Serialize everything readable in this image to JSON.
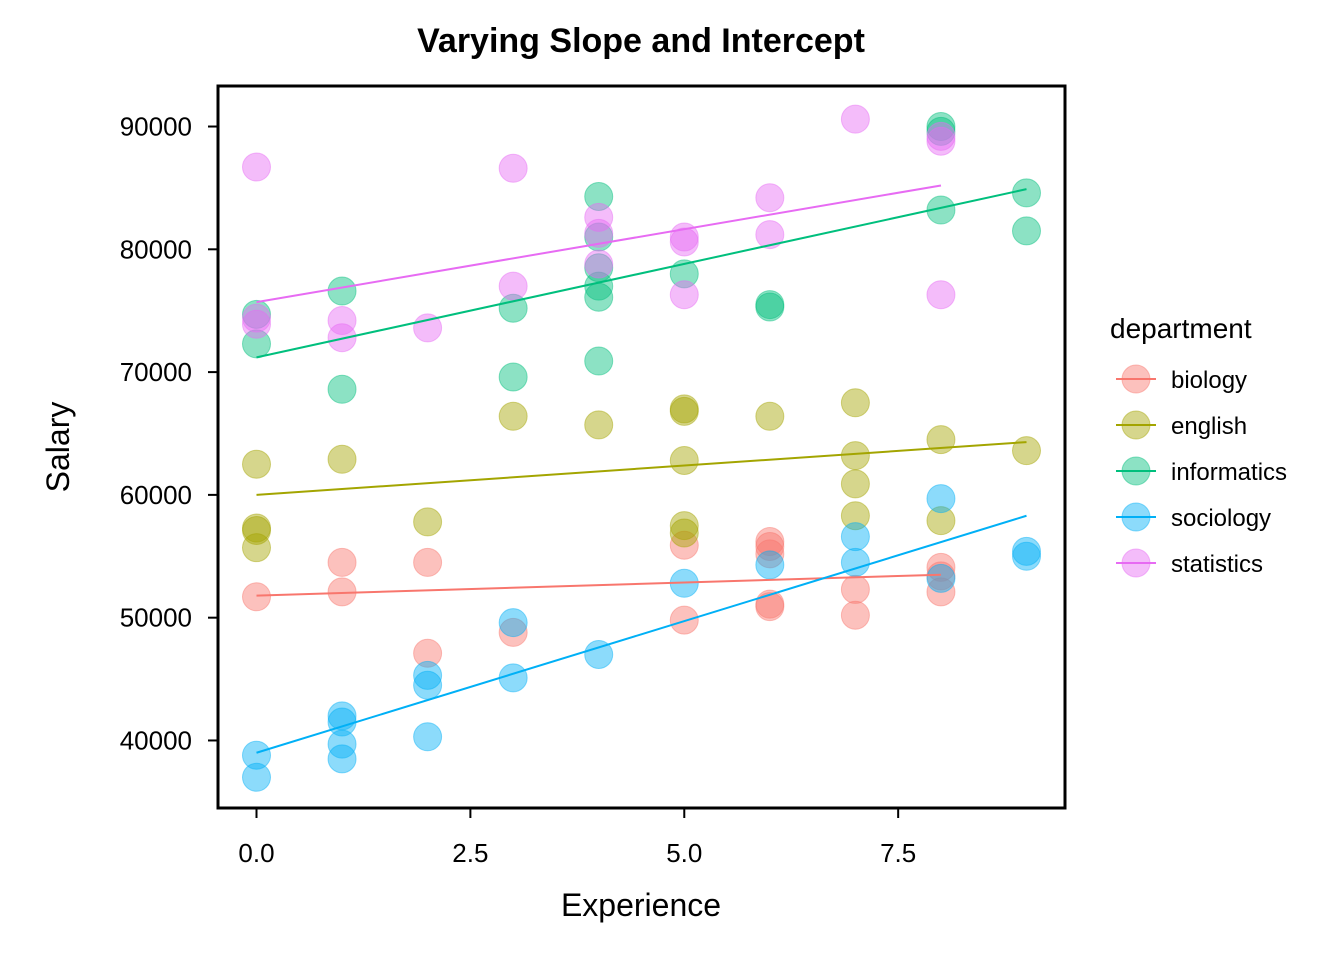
{
  "chart_data": {
    "type": "scatter",
    "title": "Varying Slope and Intercept",
    "xlabel": "Experience",
    "ylabel": "Salary",
    "xlim": [
      -0.45,
      9.45
    ],
    "ylim": [
      34500,
      93300
    ],
    "xticks": [
      0.0,
      2.5,
      5.0,
      7.5
    ],
    "xtick_labels": [
      "0.0",
      "2.5",
      "5.0",
      "7.5"
    ],
    "yticks": [
      40000,
      50000,
      60000,
      70000,
      80000,
      90000
    ],
    "ytick_labels": [
      "40000",
      "50000",
      "60000",
      "70000",
      "80000",
      "90000"
    ],
    "grid": false,
    "legend_title": "department",
    "legend_position": "right",
    "series": [
      {
        "name": "biology",
        "color": "#F8766D",
        "fit": {
          "x": [
            0,
            8
          ],
          "y": [
            51800,
            53500
          ]
        },
        "points": [
          [
            0,
            51700
          ],
          [
            1,
            54500
          ],
          [
            1,
            52100
          ],
          [
            2,
            54500
          ],
          [
            2,
            47100
          ],
          [
            3,
            48800
          ],
          [
            5,
            55900
          ],
          [
            5,
            49800
          ],
          [
            6,
            56200
          ],
          [
            6,
            55800
          ],
          [
            6,
            55200
          ],
          [
            6,
            51100
          ],
          [
            6,
            50900
          ],
          [
            7,
            52300
          ],
          [
            7,
            50200
          ],
          [
            8,
            54100
          ],
          [
            8,
            53400
          ],
          [
            8,
            52100
          ]
        ]
      },
      {
        "name": "english",
        "color": "#A3A500",
        "fit": {
          "x": [
            0,
            9
          ],
          "y": [
            60000,
            64300
          ]
        },
        "points": [
          [
            0,
            62500
          ],
          [
            0,
            57300
          ],
          [
            0,
            57100
          ],
          [
            0,
            55700
          ],
          [
            1,
            62900
          ],
          [
            2,
            57800
          ],
          [
            3,
            66400
          ],
          [
            4,
            65700
          ],
          [
            5,
            67000
          ],
          [
            5,
            66800
          ],
          [
            5,
            62800
          ],
          [
            5,
            57500
          ],
          [
            5,
            56900
          ],
          [
            6,
            66400
          ],
          [
            7,
            67500
          ],
          [
            7,
            63200
          ],
          [
            7,
            60900
          ],
          [
            7,
            58300
          ],
          [
            8,
            64500
          ],
          [
            8,
            57900
          ],
          [
            9,
            63600
          ]
        ]
      },
      {
        "name": "informatics",
        "color": "#00BF7D",
        "fit": {
          "x": [
            0,
            9
          ],
          "y": [
            71200,
            84900
          ]
        },
        "points": [
          [
            0,
            74700
          ],
          [
            0,
            72300
          ],
          [
            1,
            76600
          ],
          [
            1,
            68600
          ],
          [
            3,
            75200
          ],
          [
            3,
            69600
          ],
          [
            4,
            84300
          ],
          [
            4,
            81000
          ],
          [
            4,
            78500
          ],
          [
            4,
            77000
          ],
          [
            4,
            76100
          ],
          [
            4,
            70900
          ],
          [
            5,
            78000
          ],
          [
            6,
            75500
          ],
          [
            6,
            75300
          ],
          [
            8,
            90000
          ],
          [
            8,
            89600
          ],
          [
            8,
            83200
          ],
          [
            9,
            84600
          ],
          [
            9,
            81500
          ]
        ]
      },
      {
        "name": "sociology",
        "color": "#00B0F6",
        "fit": {
          "x": [
            0,
            9
          ],
          "y": [
            39000,
            58300
          ]
        },
        "points": [
          [
            0,
            38800
          ],
          [
            0,
            37000
          ],
          [
            1,
            42000
          ],
          [
            1,
            41500
          ],
          [
            1,
            39700
          ],
          [
            1,
            38500
          ],
          [
            2,
            45300
          ],
          [
            2,
            44500
          ],
          [
            2,
            40300
          ],
          [
            3,
            49600
          ],
          [
            3,
            45100
          ],
          [
            4,
            47000
          ],
          [
            5,
            52800
          ],
          [
            6,
            54300
          ],
          [
            7,
            56600
          ],
          [
            7,
            54500
          ],
          [
            8,
            59700
          ],
          [
            8,
            53200
          ],
          [
            9,
            55400
          ],
          [
            9,
            55000
          ]
        ]
      },
      {
        "name": "statistics",
        "color": "#E76BF3",
        "fit": {
          "x": [
            0,
            8
          ],
          "y": [
            75700,
            85200
          ]
        },
        "points": [
          [
            0,
            86700
          ],
          [
            0,
            74400
          ],
          [
            0,
            73900
          ],
          [
            1,
            74200
          ],
          [
            1,
            72800
          ],
          [
            2,
            73600
          ],
          [
            3,
            86600
          ],
          [
            3,
            77000
          ],
          [
            4,
            82600
          ],
          [
            4,
            81300
          ],
          [
            4,
            78800
          ],
          [
            5,
            81000
          ],
          [
            5,
            80600
          ],
          [
            5,
            76300
          ],
          [
            6,
            84200
          ],
          [
            6,
            81200
          ],
          [
            7,
            90600
          ],
          [
            8,
            89200
          ],
          [
            8,
            88800
          ],
          [
            8,
            76300
          ]
        ]
      }
    ]
  }
}
